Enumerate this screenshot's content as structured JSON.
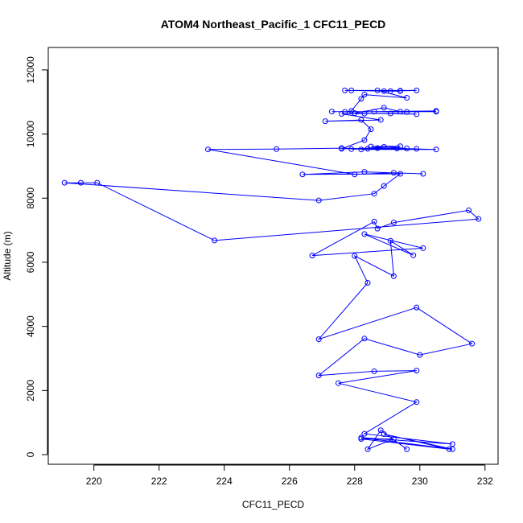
{
  "chart_data": {
    "type": "line",
    "title": "ATOM4 Northeast_Pacific_1 CFC11_PECD",
    "xlabel": "CFC11_PECD",
    "ylabel": "Altitude (m)",
    "xlim": [
      218.6,
      232.4
    ],
    "ylim": [
      -300,
      12700
    ],
    "xticks": [
      220,
      222,
      224,
      226,
      228,
      230,
      232
    ],
    "yticks": [
      0,
      2000,
      4000,
      6000,
      8000,
      10000,
      12000
    ],
    "grid": false,
    "legend": "none",
    "markers": "open-circle",
    "color": "#0000ff",
    "points": [
      [
        229.6,
        170
      ],
      [
        228.8,
        760
      ],
      [
        228.4,
        170
      ],
      [
        229.2,
        490
      ],
      [
        228.2,
        490
      ],
      [
        230.9,
        170
      ],
      [
        228.9,
        640
      ],
      [
        231.0,
        170
      ],
      [
        228.2,
        530
      ],
      [
        231.0,
        330
      ],
      [
        228.3,
        650
      ],
      [
        229.9,
        1640
      ],
      [
        227.5,
        2230
      ],
      [
        229.9,
        2620
      ],
      [
        228.6,
        2600
      ],
      [
        226.9,
        2470
      ],
      [
        228.3,
        3620
      ],
      [
        230.0,
        3110
      ],
      [
        231.6,
        3460
      ],
      [
        229.9,
        4590
      ],
      [
        226.9,
        3600
      ],
      [
        228.4,
        5360
      ],
      [
        228.0,
        6200
      ],
      [
        229.2,
        5570
      ],
      [
        229.1,
        6670
      ],
      [
        229.8,
        6220
      ],
      [
        228.3,
        6880
      ],
      [
        230.1,
        6440
      ],
      [
        226.7,
        6210
      ],
      [
        228.6,
        7270
      ],
      [
        228.7,
        7050
      ],
      [
        229.2,
        7240
      ],
      [
        231.5,
        7620
      ],
      [
        231.8,
        7350
      ],
      [
        223.7,
        6680
      ],
      [
        220.1,
        8480
      ],
      [
        219.6,
        8480
      ],
      [
        219.1,
        8480
      ],
      [
        226.9,
        7930
      ],
      [
        228.6,
        8140
      ],
      [
        228.9,
        8380
      ],
      [
        229.4,
        8760
      ],
      [
        226.4,
        8740
      ],
      [
        228.3,
        8820
      ],
      [
        230.1,
        8760
      ],
      [
        229.2,
        8790
      ],
      [
        228.0,
        8740
      ],
      [
        223.5,
        9520
      ],
      [
        225.6,
        9530
      ],
      [
        227.6,
        9560
      ],
      [
        228.4,
        9540
      ],
      [
        229.3,
        9550
      ],
      [
        230.5,
        9520
      ],
      [
        228.2,
        9520
      ],
      [
        228.7,
        9560
      ],
      [
        229.6,
        9550
      ],
      [
        228.9,
        9600
      ],
      [
        228.5,
        9610
      ],
      [
        229.4,
        9620
      ],
      [
        227.9,
        9530
      ],
      [
        229.9,
        9540
      ],
      [
        227.6,
        9540
      ],
      [
        228.3,
        9810
      ],
      [
        228.5,
        10150
      ],
      [
        228.2,
        10440
      ],
      [
        227.1,
        10400
      ],
      [
        228.8,
        10440
      ],
      [
        227.6,
        10630
      ],
      [
        228.3,
        10640
      ],
      [
        229.1,
        10640
      ],
      [
        229.9,
        10620
      ],
      [
        228.0,
        10650
      ],
      [
        228.9,
        10820
      ],
      [
        229.4,
        10700
      ],
      [
        230.5,
        10700
      ],
      [
        227.3,
        10700
      ],
      [
        228.6,
        10700
      ],
      [
        229.6,
        10690
      ],
      [
        230.5,
        10720
      ],
      [
        227.7,
        10690
      ],
      [
        227.9,
        10720
      ],
      [
        228.2,
        11100
      ],
      [
        228.3,
        11230
      ],
      [
        229.6,
        11130
      ],
      [
        228.7,
        11360
      ],
      [
        229.4,
        11350
      ],
      [
        229.9,
        11360
      ],
      [
        227.7,
        11360
      ],
      [
        227.9,
        11360
      ],
      [
        228.9,
        11340
      ],
      [
        229.1,
        11340
      ],
      [
        229.4,
        11340
      ]
    ]
  }
}
